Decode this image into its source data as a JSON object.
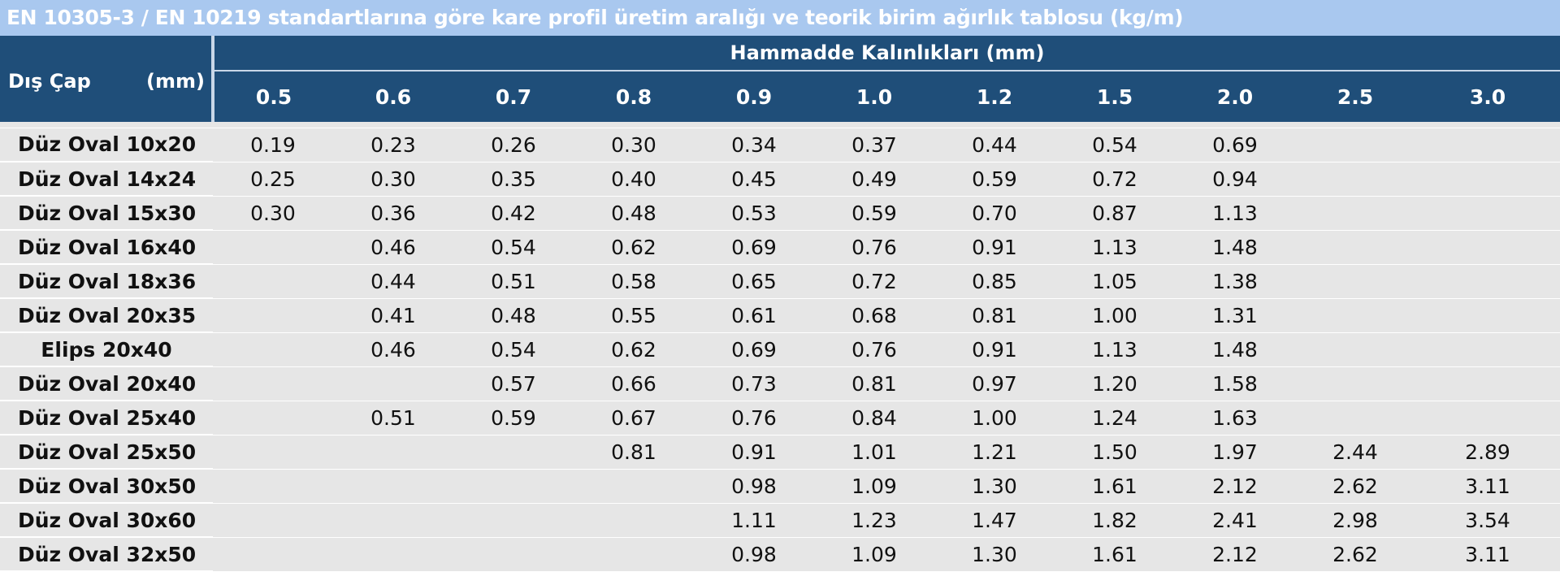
{
  "title": "EN 10305-3 / EN 10219 standartlarına göre kare profil üretim aralığı ve teorik birim ağırlık tablosu (kg/m)",
  "header": {
    "row_label": "Dış Çap",
    "row_unit": "(mm)",
    "group_label": "Hammadde Kalınlıkları (mm)",
    "thickness_columns": [
      "0.5",
      "0.6",
      "0.7",
      "0.8",
      "0.9",
      "1.0",
      "1.2",
      "1.5",
      "2.0",
      "2.5",
      "3.0"
    ]
  },
  "colors": {
    "title_bg": "#a9c8ef",
    "header_bg": "#1f4e79",
    "body_bg": "#e6e6e6"
  },
  "rows": [
    {
      "label": "Düz Oval 10x20",
      "values": [
        "0.19",
        "0.23",
        "0.26",
        "0.30",
        "0.34",
        "0.37",
        "0.44",
        "0.54",
        "0.69",
        "",
        ""
      ]
    },
    {
      "label": "Düz Oval 14x24",
      "values": [
        "0.25",
        "0.30",
        "0.35",
        "0.40",
        "0.45",
        "0.49",
        "0.59",
        "0.72",
        "0.94",
        "",
        ""
      ]
    },
    {
      "label": "Düz Oval 15x30",
      "values": [
        "0.30",
        "0.36",
        "0.42",
        "0.48",
        "0.53",
        "0.59",
        "0.70",
        "0.87",
        "1.13",
        "",
        ""
      ]
    },
    {
      "label": "Düz Oval 16x40",
      "values": [
        "",
        "0.46",
        "0.54",
        "0.62",
        "0.69",
        "0.76",
        "0.91",
        "1.13",
        "1.48",
        "",
        ""
      ]
    },
    {
      "label": "Düz Oval 18x36",
      "values": [
        "",
        "0.44",
        "0.51",
        "0.58",
        "0.65",
        "0.72",
        "0.85",
        "1.05",
        "1.38",
        "",
        ""
      ]
    },
    {
      "label": "Düz Oval 20x35",
      "values": [
        "",
        "0.41",
        "0.48",
        "0.55",
        "0.61",
        "0.68",
        "0.81",
        "1.00",
        "1.31",
        "",
        ""
      ]
    },
    {
      "label": "Elips 20x40",
      "values": [
        "",
        "0.46",
        "0.54",
        "0.62",
        "0.69",
        "0.76",
        "0.91",
        "1.13",
        "1.48",
        "",
        ""
      ]
    },
    {
      "label": "Düz Oval 20x40",
      "values": [
        "",
        "",
        "0.57",
        "0.66",
        "0.73",
        "0.81",
        "0.97",
        "1.20",
        "1.58",
        "",
        ""
      ]
    },
    {
      "label": "Düz Oval 25x40",
      "values": [
        "",
        "0.51",
        "0.59",
        "0.67",
        "0.76",
        "0.84",
        "1.00",
        "1.24",
        "1.63",
        "",
        ""
      ]
    },
    {
      "label": "Düz Oval 25x50",
      "values": [
        "",
        "",
        "",
        "0.81",
        "0.91",
        "1.01",
        "1.21",
        "1.50",
        "1.97",
        "2.44",
        "2.89"
      ]
    },
    {
      "label": "Düz Oval 30x50",
      "values": [
        "",
        "",
        "",
        "",
        "0.98",
        "1.09",
        "1.30",
        "1.61",
        "2.12",
        "2.62",
        "3.11"
      ]
    },
    {
      "label": "Düz Oval 30x60",
      "values": [
        "",
        "",
        "",
        "",
        "1.11",
        "1.23",
        "1.47",
        "1.82",
        "2.41",
        "2.98",
        "3.54"
      ]
    },
    {
      "label": "Düz Oval 32x50",
      "values": [
        "",
        "",
        "",
        "",
        "0.98",
        "1.09",
        "1.30",
        "1.61",
        "2.12",
        "2.62",
        "3.11"
      ]
    }
  ]
}
